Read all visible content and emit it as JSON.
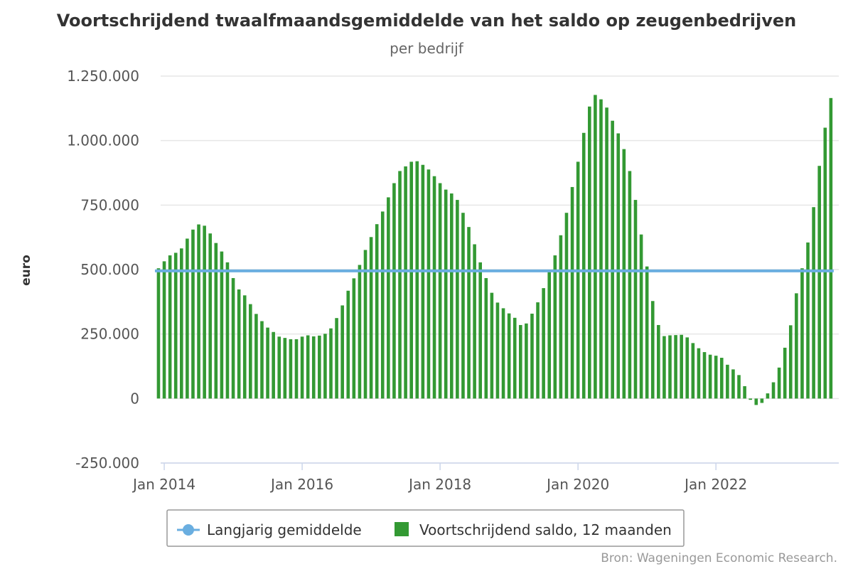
{
  "chart_data": {
    "type": "bar",
    "title": "Voortschrijdend twaalfmaandsgemiddelde van het saldo op zeugenbedrijven",
    "subtitle": "per bedrijf",
    "ylabel": "euro",
    "ylim": [
      -250000,
      1250000
    ],
    "yticks": [
      -250000,
      0,
      250000,
      500000,
      750000,
      1000000,
      1250000
    ],
    "ytick_labels": [
      "-250.000",
      "0",
      "250.000",
      "500.000",
      "750.000",
      "1.000.000",
      "1.250.000"
    ],
    "x_start": "2014-01",
    "x_range_months": [
      -0.5,
      117.5
    ],
    "xticks": [
      {
        "label": "Jan 2014",
        "month_index": 0
      },
      {
        "label": "Jan 2016",
        "month_index": 24
      },
      {
        "label": "Jan 2018",
        "month_index": 48
      },
      {
        "label": "Jan 2020",
        "month_index": 72
      },
      {
        "label": "Jan 2022",
        "month_index": 96
      }
    ],
    "series": [
      {
        "name": "Voortschrijdend saldo, 12 maanden",
        "type": "bar",
        "color": "#339933",
        "first_month_index": -1,
        "values": [
          505000,
          532000,
          555000,
          565000,
          582000,
          620000,
          655000,
          675000,
          670000,
          640000,
          603000,
          570000,
          528000,
          467000,
          423000,
          400000,
          366000,
          328000,
          300000,
          275000,
          258000,
          240000,
          235000,
          230000,
          230000,
          240000,
          245000,
          241000,
          244000,
          251000,
          272000,
          312000,
          361000,
          418000,
          466000,
          518000,
          576000,
          626000,
          676000,
          725000,
          780000,
          835000,
          882000,
          900000,
          918000,
          920000,
          906000,
          888000,
          862000,
          835000,
          810000,
          795000,
          770000,
          720000,
          665000,
          598000,
          528000,
          467000,
          410000,
          372000,
          350000,
          330000,
          313000,
          285000,
          291000,
          329000,
          373000,
          428000,
          490000,
          555000,
          633000,
          720000,
          820000,
          918000,
          1030000,
          1132000,
          1177000,
          1160000,
          1128000,
          1077000,
          1028000,
          967000,
          882000,
          770000,
          636000,
          512000,
          378000,
          285000,
          242000,
          245000,
          246000,
          247000,
          237000,
          215000,
          195000,
          180000,
          170000,
          166000,
          158000,
          131000,
          113000,
          91000,
          48000,
          -5000,
          -25000,
          -17000,
          20000,
          63000,
          120000,
          197000,
          284000,
          408000,
          505000,
          605000,
          742000,
          902000,
          1050000,
          1165000
        ]
      },
      {
        "name": "Langjarig gemiddelde",
        "type": "line",
        "color": "#6aaee0",
        "value": 495000
      }
    ],
    "legend_position": "bottom-center",
    "credit": "Bron: Wageningen Economic Research."
  }
}
